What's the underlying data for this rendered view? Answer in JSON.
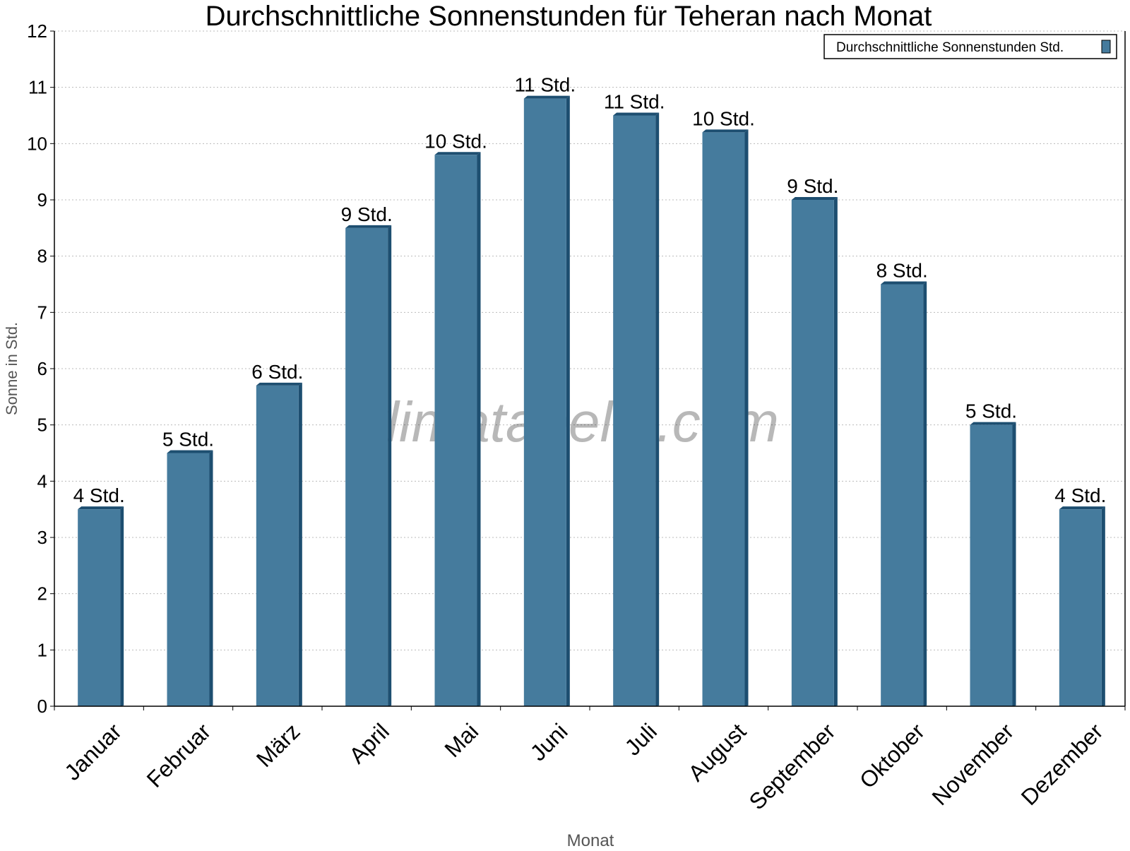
{
  "chart_data": {
    "type": "bar",
    "title": "Durchschnittliche Sonnenstunden für Teheran nach Monat",
    "xlabel": "Monat",
    "ylabel": "Sonne in Std.",
    "ylim": [
      0,
      12
    ],
    "yticks": [
      0,
      1,
      2,
      3,
      4,
      5,
      6,
      7,
      8,
      9,
      10,
      11,
      12
    ],
    "grid": true,
    "legend_placement": "top-right",
    "categories": [
      "Januar",
      "Februar",
      "März",
      "April",
      "Mai",
      "Juni",
      "Juli",
      "August",
      "September",
      "Oktober",
      "November",
      "Dezember"
    ],
    "series": [
      {
        "name": "Durchschnittliche Sonnenstunden Std.",
        "values": [
          3.5,
          4.5,
          5.7,
          8.5,
          9.8,
          10.8,
          10.5,
          10.2,
          9.0,
          7.5,
          5.0,
          3.5
        ],
        "labels": [
          "4 Std.",
          "5 Std.",
          "6 Std.",
          "9 Std.",
          "10 Std.",
          "11 Std.",
          "11 Std.",
          "10 Std.",
          "9 Std.",
          "8 Std.",
          "5 Std.",
          "4 Std."
        ],
        "color": "#457b9d",
        "side_color": "#1d4e70"
      }
    ],
    "watermark": "klimatabelle.com"
  }
}
